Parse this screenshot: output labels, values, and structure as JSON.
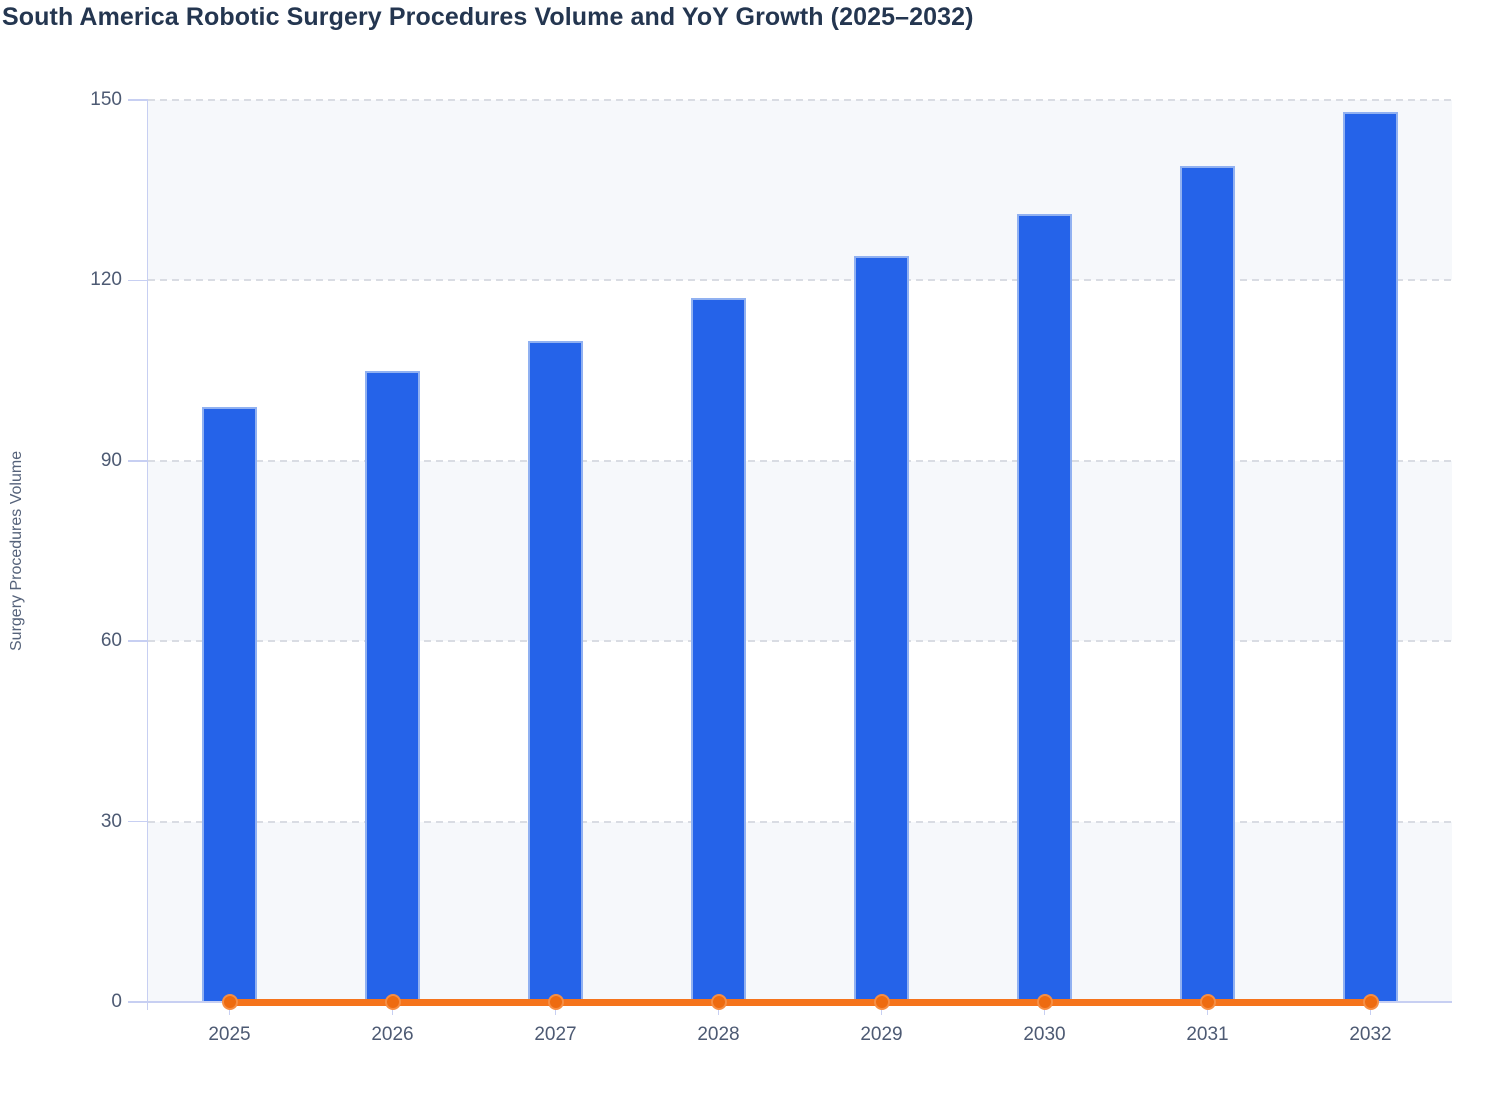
{
  "title": "South America Robotic Surgery Procedures Volume and YoY Growth (2025–2032)",
  "chart_data": {
    "type": "bar",
    "title": "South America Robotic Surgery Procedures Volume and YoY Growth (2025–2032)",
    "categories": [
      "2025",
      "2026",
      "2027",
      "2028",
      "2029",
      "2030",
      "2031",
      "2032"
    ],
    "series": [
      {
        "name": "Surgery Procedures Volume",
        "type": "bar",
        "values": [
          99,
          105,
          110,
          117,
          124,
          131,
          139,
          148
        ],
        "color": "#2563e9"
      },
      {
        "name": "YoY Growth",
        "type": "line",
        "values": [
          0,
          0,
          0,
          0,
          0,
          0,
          0,
          0
        ],
        "color": "#f5741c"
      }
    ],
    "xlabel": "",
    "ylabel": "Surgery Procedures Volume",
    "yticks": [
      0,
      30,
      60,
      90,
      120,
      150
    ],
    "ylim": [
      0,
      150
    ],
    "grid": "horizontal-dashed",
    "plot_bands": "alternating-light",
    "legend_position": "none",
    "colors": {
      "bar_fill": "#2563e9",
      "bar_border": "#a5bef2",
      "line": "#f5741c",
      "marker": "#ee6b10",
      "axis": "#c7cff2",
      "gridline": "#d9dce3",
      "band": "#f6f8fb",
      "title_text": "#243650",
      "tick_text": "#4d5a73",
      "axis_title_text": "#55627a"
    }
  }
}
